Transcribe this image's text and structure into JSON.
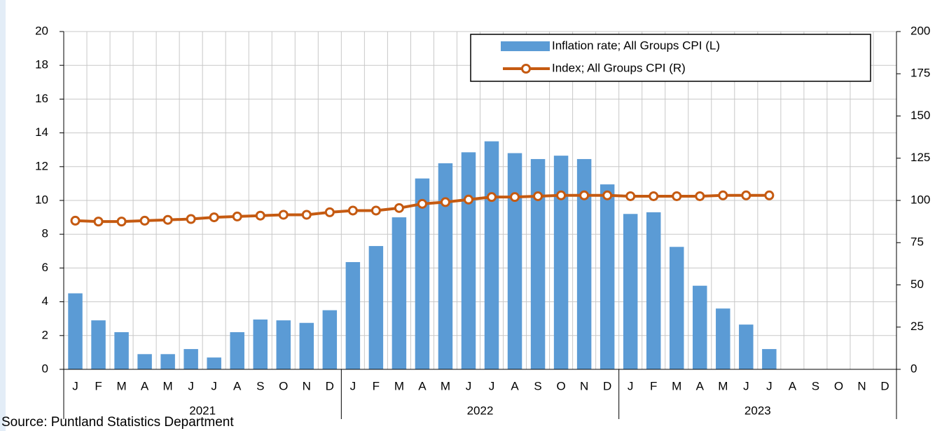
{
  "chart_data": {
    "type": "combo",
    "categories": [
      "J",
      "F",
      "M",
      "A",
      "M",
      "J",
      "J",
      "A",
      "S",
      "O",
      "N",
      "D",
      "J",
      "F",
      "M",
      "A",
      "M",
      "J",
      "J",
      "A",
      "S",
      "O",
      "N",
      "D",
      "J",
      "F",
      "M",
      "A",
      "M",
      "J",
      "J",
      "A",
      "S",
      "O",
      "N",
      "D"
    ],
    "year_labels": [
      "2021",
      "2022",
      "2023"
    ],
    "series": [
      {
        "name": "Inflation rate; All Groups CPI (L)",
        "type": "bar",
        "color": "#5b9bd5",
        "values": [
          4.5,
          2.9,
          2.2,
          0.9,
          0.9,
          1.2,
          0.7,
          2.2,
          2.95,
          2.9,
          2.75,
          3.5,
          6.35,
          7.3,
          9.0,
          11.3,
          12.2,
          12.85,
          13.5,
          12.8,
          12.45,
          12.65,
          12.45,
          10.95,
          9.2,
          9.3,
          7.25,
          4.95,
          3.6,
          2.65,
          1.2,
          null,
          null,
          null,
          null,
          null
        ]
      },
      {
        "name": "Index; All Groups CPI (R)",
        "type": "line",
        "axis": "y2",
        "color": "#c55a11",
        "values": [
          88,
          87.5,
          87.5,
          88,
          88.5,
          89,
          90,
          90.5,
          91,
          91.5,
          91.5,
          93,
          94,
          94,
          95.5,
          98,
          99,
          100.5,
          102,
          102,
          102.5,
          103,
          103,
          103,
          102.5,
          102.5,
          102.5,
          102.5,
          103,
          103,
          103,
          null,
          null,
          null,
          null,
          null
        ]
      }
    ],
    "ylim": [
      0,
      20
    ],
    "yticks": [
      0,
      2,
      4,
      6,
      8,
      10,
      12,
      14,
      16,
      18,
      20
    ],
    "y2lim": [
      0,
      200
    ],
    "y2ticks": [
      0,
      25,
      50,
      75,
      100,
      125,
      150,
      175,
      200
    ],
    "grid": true,
    "legend": "top-right",
    "source": "Source: Puntland Statistics Department"
  }
}
